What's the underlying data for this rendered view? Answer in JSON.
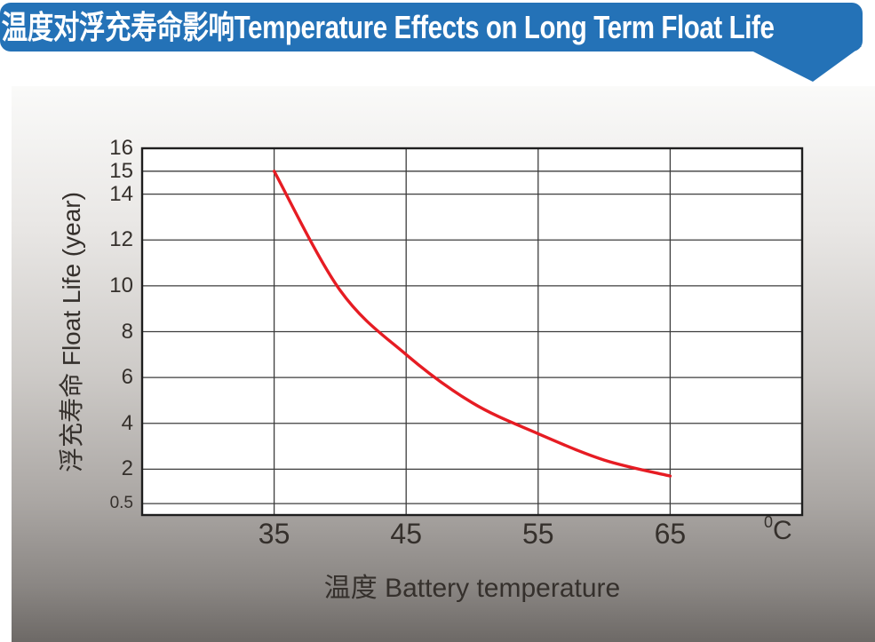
{
  "banner": {
    "title": "温度对浮充寿命影响Temperature Effects on Long Term Float Life",
    "bg_color": "#2472b7",
    "text_color": "#ffffff"
  },
  "chart_data": {
    "type": "line",
    "title": "温度对浮充寿命影响 Temperature Effects on Long Term Float Life",
    "x": [
      35,
      40,
      45,
      50,
      55,
      60,
      65
    ],
    "series": [
      {
        "name": "Float Life",
        "color": "#e61c23",
        "values": [
          15,
          9.8,
          7.0,
          4.9,
          3.55,
          2.4,
          1.7
        ]
      }
    ],
    "xlabel": "温度  Battery temperature",
    "ylabel": "浮充寿命  Float Life (year)",
    "unit_sup": "0",
    "unit_base": "C",
    "xlim": [
      25,
      75
    ],
    "ylim": [
      0,
      16
    ],
    "x_ticks": [
      35,
      45,
      55,
      65
    ],
    "y_ticks": [
      16,
      15,
      14,
      12,
      10,
      8,
      6,
      4,
      2,
      0.5
    ],
    "grid": true,
    "legend_position": "none",
    "plot_bg": "#ffffff",
    "grid_color": "#3d3d3d",
    "border_color": "#1e1e1e"
  }
}
